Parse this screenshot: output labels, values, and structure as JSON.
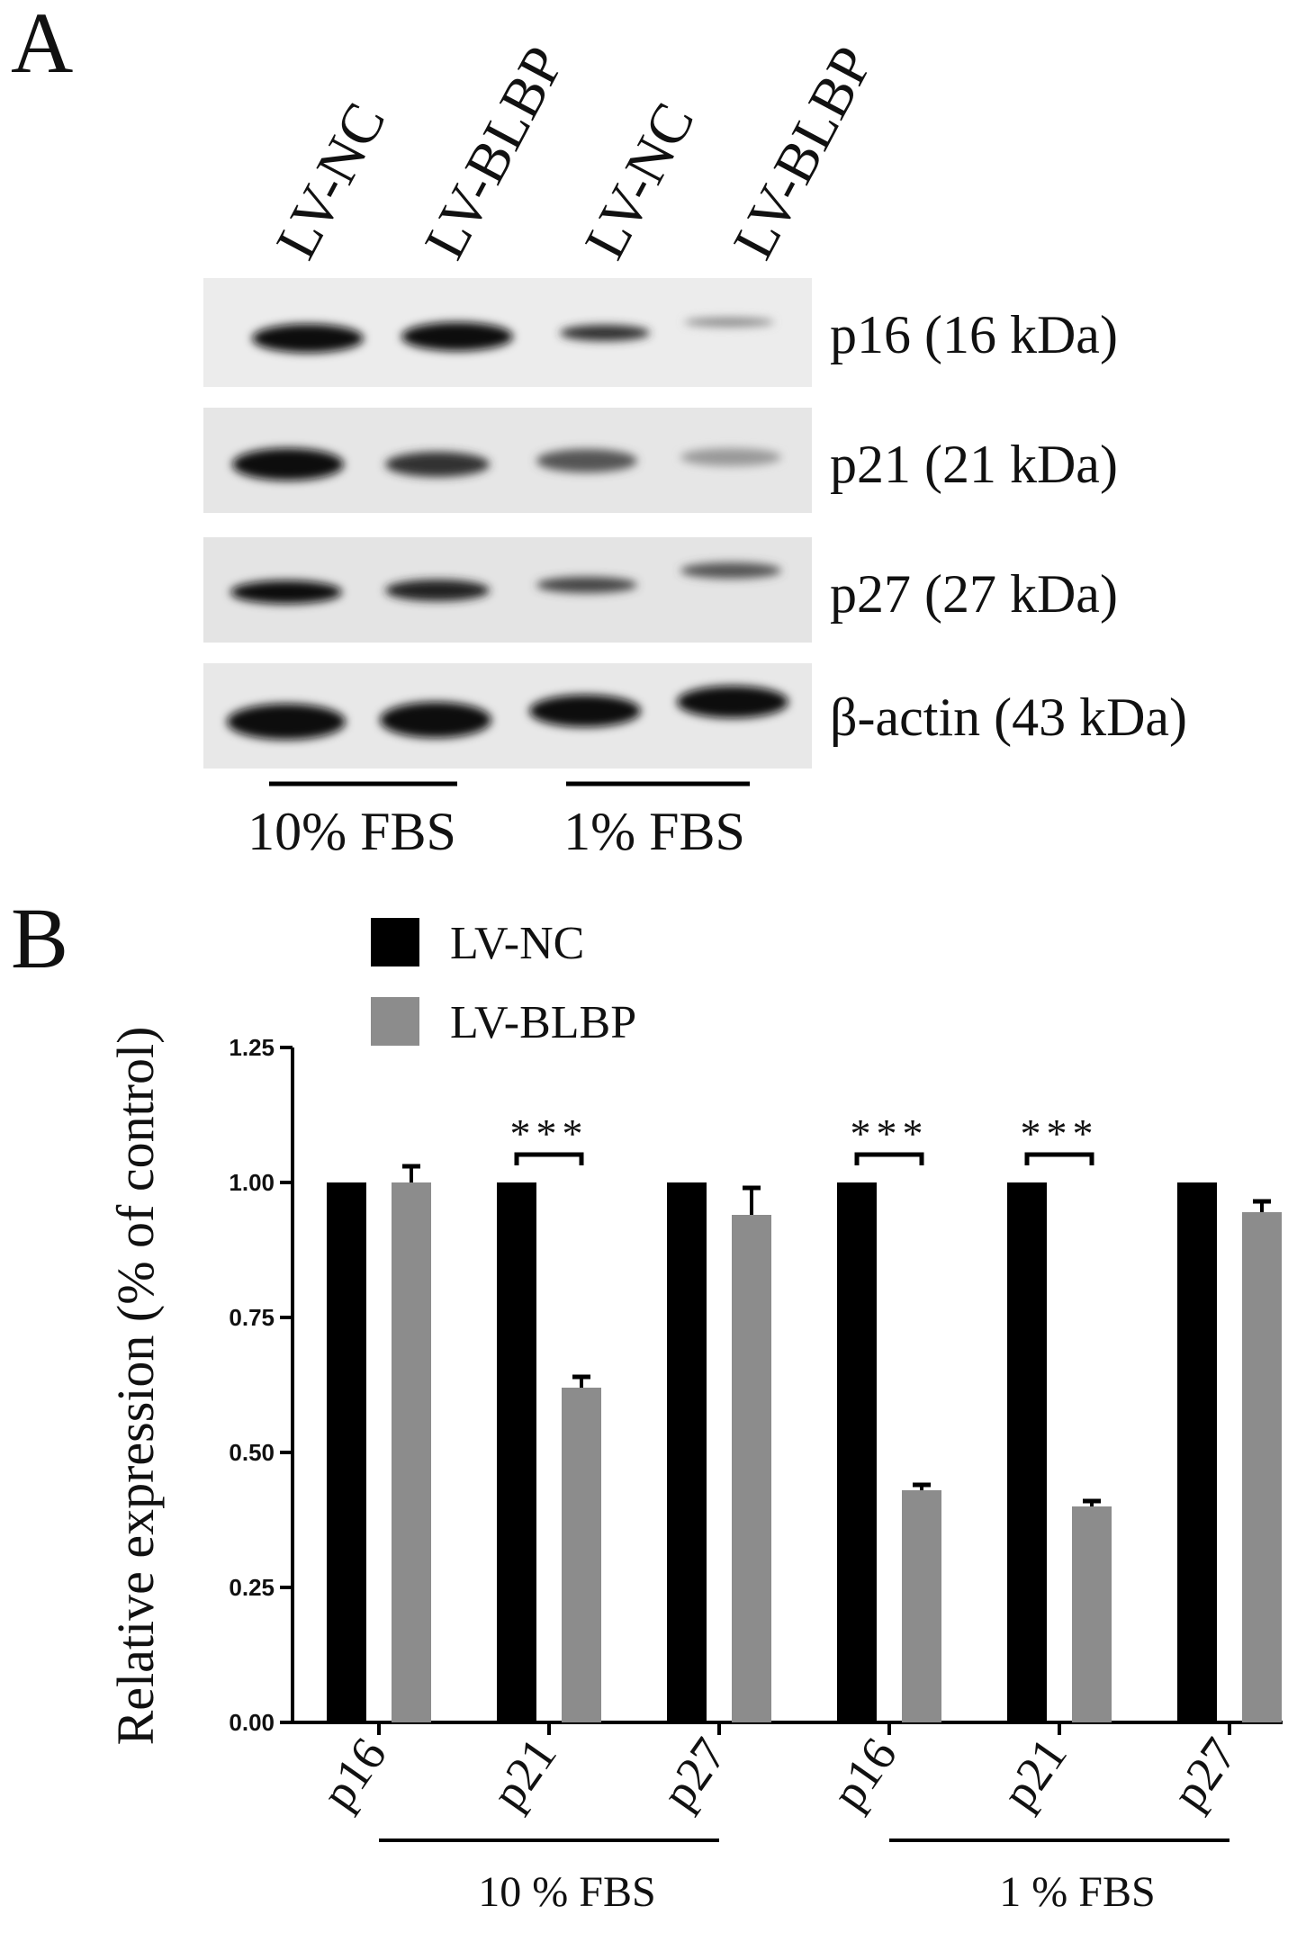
{
  "panel_a": {
    "label": "A",
    "lanes": [
      "LV-NC",
      "LV-BLBP",
      "LV-NC",
      "LV-BLBP"
    ],
    "rows": [
      "p16 (16 kDa)",
      "p21 (21 kDa)",
      "p27 (27 kDa)",
      "β-actin (43 kDa)"
    ],
    "groups": [
      "10% FBS",
      "1% FBS"
    ]
  },
  "chart_data": {
    "type": "bar",
    "panel_label": "B",
    "y_label": "Relative expression (% of control)",
    "categories": [
      "p16",
      "p21",
      "p27",
      "p16",
      "p21",
      "p27"
    ],
    "groups": [
      "10 % FBS",
      "1 % FBS"
    ],
    "series": [
      {
        "name": "LV-NC",
        "color": "#000000",
        "values": [
          1.0,
          1.0,
          1.0,
          1.0,
          1.0,
          1.0
        ]
      },
      {
        "name": "LV-BLBP",
        "color": "#8c8c8c",
        "values": [
          1.0,
          0.62,
          0.94,
          0.43,
          0.4,
          0.945
        ],
        "errors": [
          0.03,
          0.02,
          0.05,
          0.01,
          0.01,
          0.02
        ]
      }
    ],
    "significance": [
      null,
      "***",
      null,
      "***",
      "***",
      null
    ],
    "ylim": [
      0,
      1.25
    ],
    "yticks": [
      {
        "value": 0,
        "label": "0.00"
      },
      {
        "value": 0.25,
        "label": "0.25"
      },
      {
        "value": 0.5,
        "label": "0.50"
      },
      {
        "value": 0.75,
        "label": "0.75"
      },
      {
        "value": 1,
        "label": "1.00"
      },
      {
        "value": 1.25,
        "label": "1.25"
      }
    ]
  }
}
